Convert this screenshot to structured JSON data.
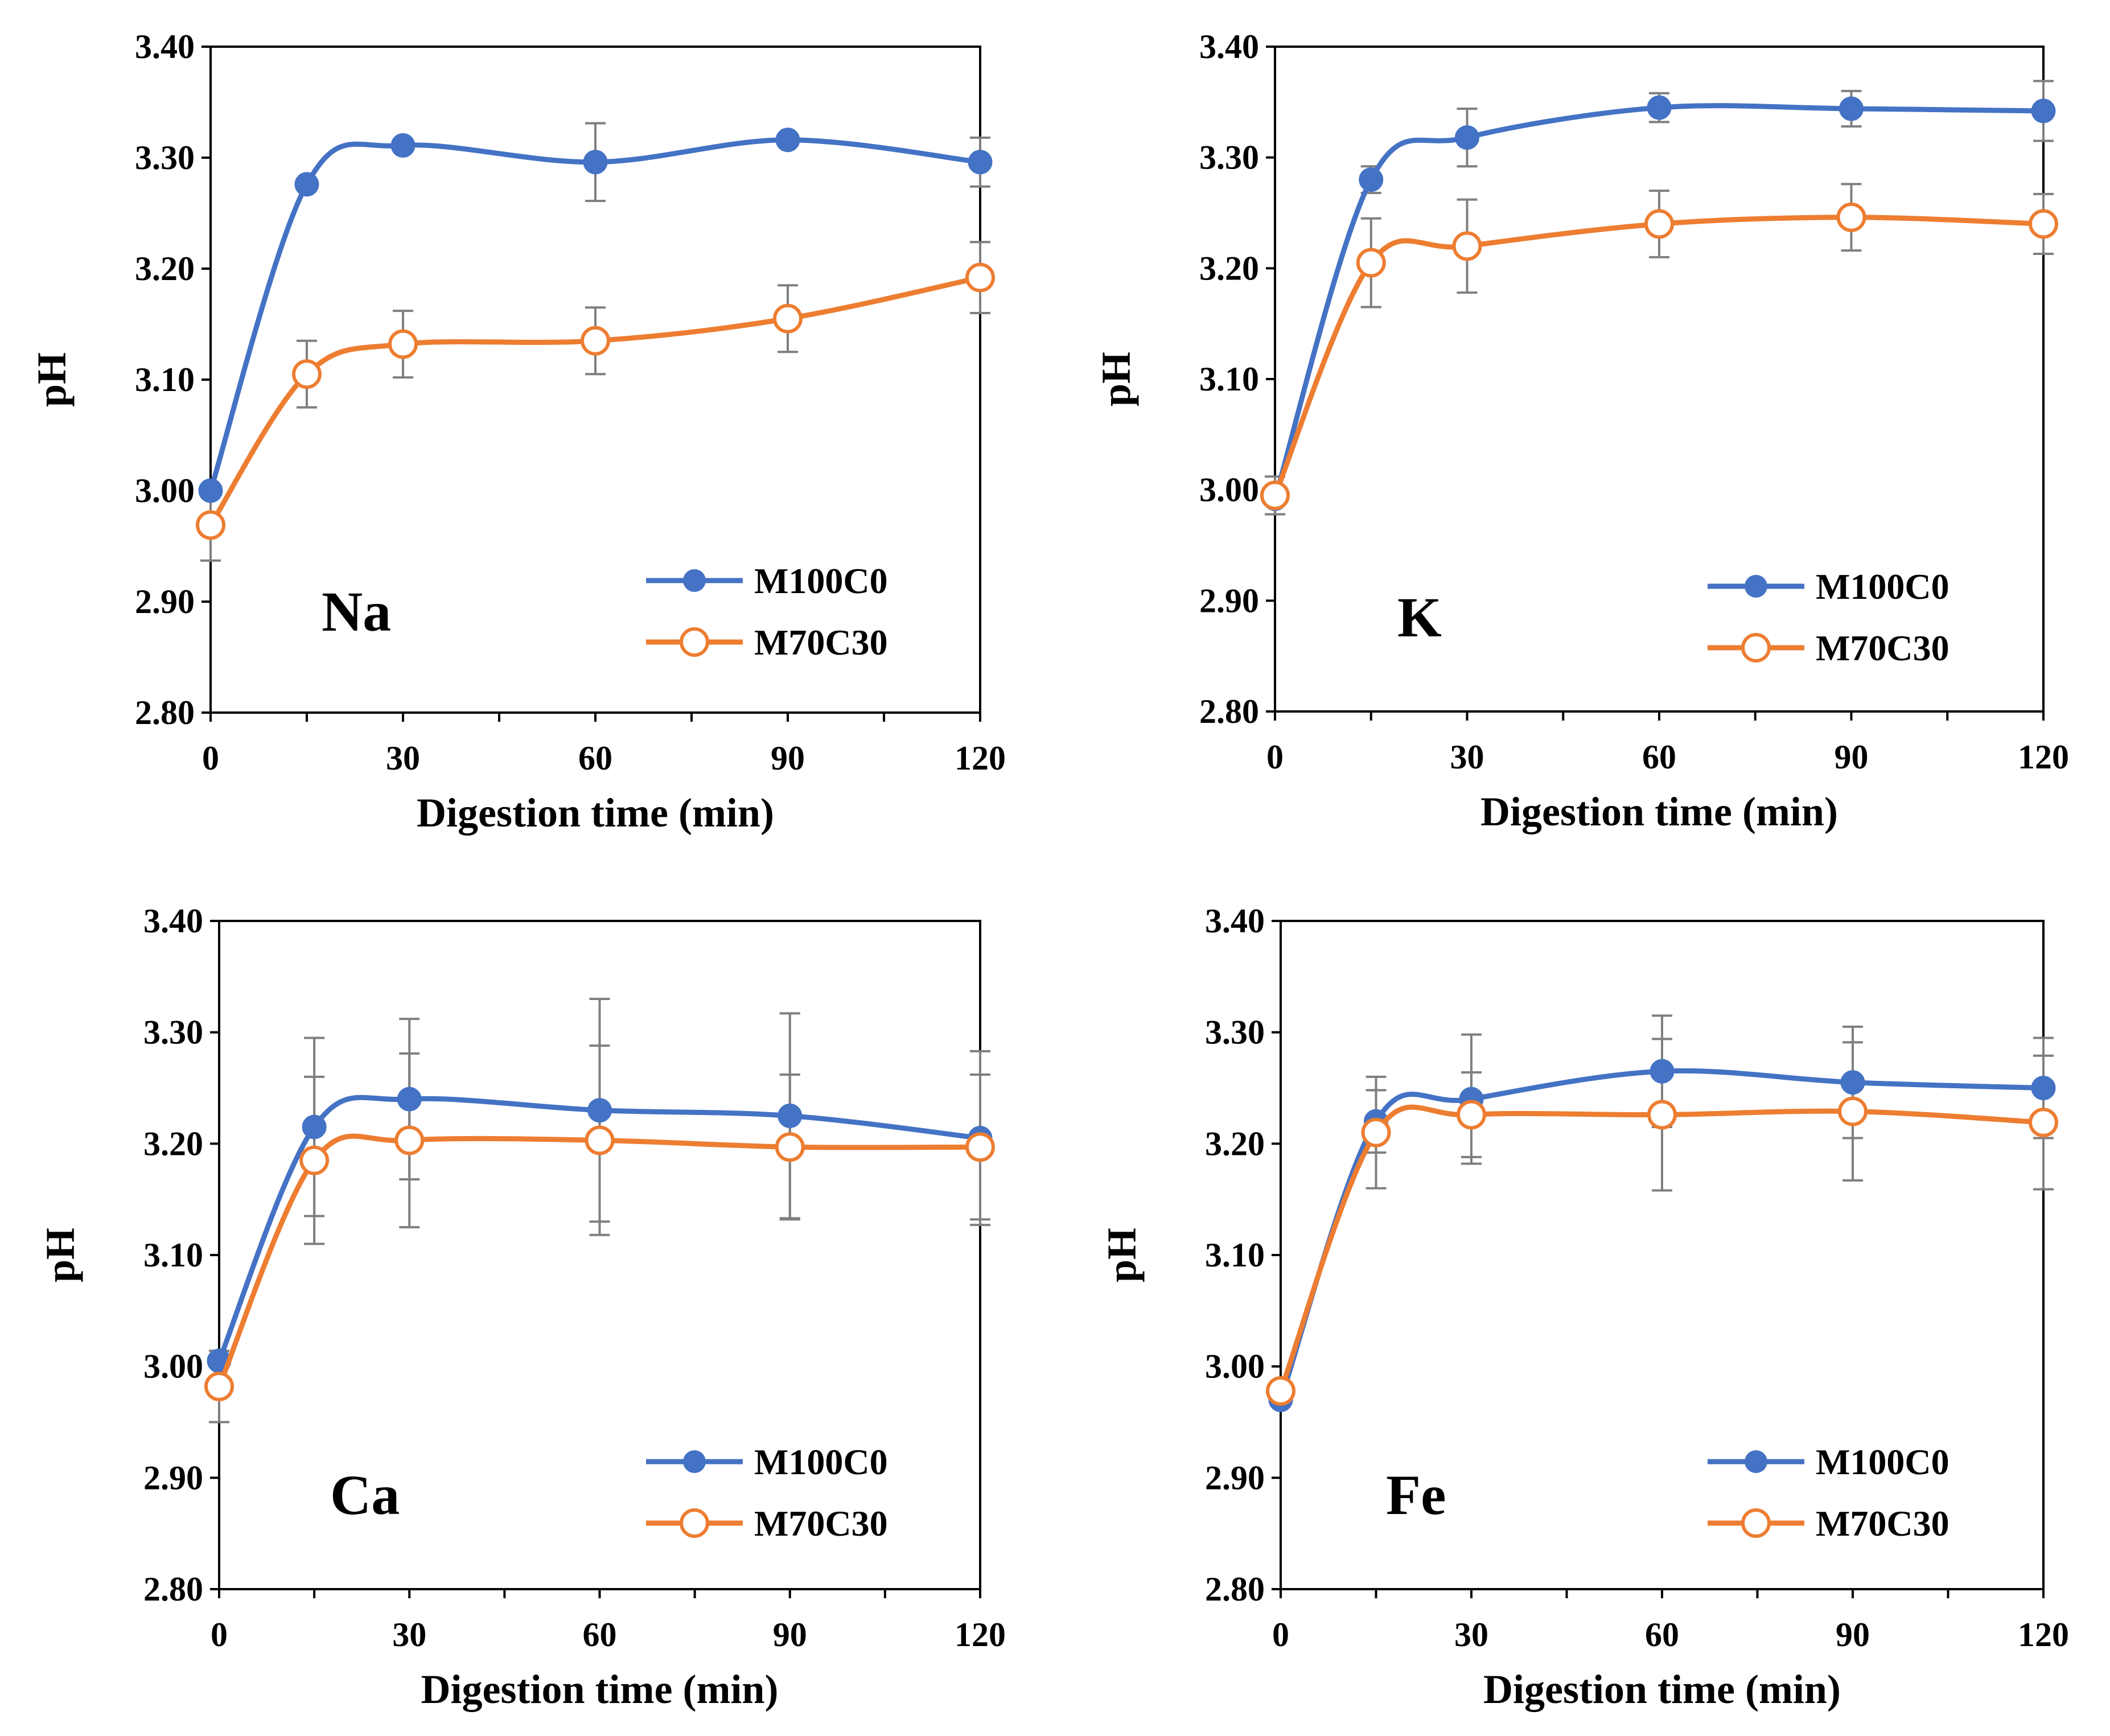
{
  "chart_data": [
    {
      "type": "line",
      "panel_label": "Na",
      "xlabel": "Digestion time (min)",
      "ylabel": "pH",
      "ylim": [
        2.8,
        3.4
      ],
      "yticks": [
        "2.80",
        "2.90",
        "3.00",
        "3.10",
        "3.20",
        "3.30",
        "3.40"
      ],
      "xticks": [
        "0",
        "30",
        "60",
        "90",
        "120"
      ],
      "x": [
        0,
        15,
        30,
        60,
        90,
        120
      ],
      "legend_position": "lower-right",
      "series": [
        {
          "name": "M100C0",
          "color": "#4472C4",
          "marker": "filled-circle",
          "values": [
            3.0,
            3.276,
            3.311,
            3.296,
            3.316,
            3.296
          ],
          "errors": [
            0,
            0,
            0,
            0.035,
            0,
            0.022
          ]
        },
        {
          "name": "M70C30",
          "color": "#ED7D31",
          "marker": "open-circle",
          "values": [
            2.969,
            3.105,
            3.132,
            3.135,
            3.155,
            3.192
          ],
          "errors": [
            0.032,
            0.03,
            0.03,
            0.03,
            0.03,
            0.032
          ]
        }
      ]
    },
    {
      "type": "line",
      "panel_label": "K",
      "xlabel": "Digestion time (min)",
      "ylabel": "pH",
      "ylim": [
        2.8,
        3.4
      ],
      "yticks": [
        "2.80",
        "2.90",
        "3.00",
        "3.10",
        "3.20",
        "3.30",
        "3.40"
      ],
      "xticks": [
        "0",
        "30",
        "60",
        "90",
        "120"
      ],
      "x": [
        0,
        15,
        30,
        60,
        90,
        120
      ],
      "legend_position": "lower-right",
      "series": [
        {
          "name": "M100C0",
          "color": "#4472C4",
          "marker": "filled-circle",
          "values": [
            2.992,
            3.28,
            3.318,
            3.345,
            3.344,
            3.342
          ],
          "errors": [
            0,
            0.012,
            0.026,
            0.013,
            0.016,
            0.027
          ]
        },
        {
          "name": "M70C30",
          "color": "#ED7D31",
          "marker": "open-circle",
          "values": [
            2.995,
            3.205,
            3.22,
            3.24,
            3.246,
            3.24
          ],
          "errors": [
            0.017,
            0.04,
            0.042,
            0.03,
            0.03,
            0.027
          ]
        }
      ]
    },
    {
      "type": "line",
      "panel_label": "Ca",
      "xlabel": "Digestion time (min)",
      "ylabel": "pH",
      "ylim": [
        2.8,
        3.4
      ],
      "yticks": [
        "2.80",
        "2.90",
        "3.00",
        "3.10",
        "3.20",
        "3.30",
        "3.40"
      ],
      "xticks": [
        "0",
        "30",
        "60",
        "90",
        "120"
      ],
      "x": [
        0,
        15,
        30,
        60,
        90,
        120
      ],
      "legend_position": "lower-right",
      "series": [
        {
          "name": "M100C0",
          "color": "#4472C4",
          "marker": "filled-circle",
          "values": [
            3.005,
            3.215,
            3.24,
            3.23,
            3.225,
            3.205
          ],
          "errors": [
            0,
            0.08,
            0.072,
            0.1,
            0.092,
            0.078
          ]
        },
        {
          "name": "M70C30",
          "color": "#ED7D31",
          "marker": "open-circle",
          "values": [
            2.982,
            3.185,
            3.203,
            3.203,
            3.197,
            3.197
          ],
          "errors": [
            0.032,
            0.075,
            0.078,
            0.085,
            0.065,
            0.065
          ]
        }
      ]
    },
    {
      "type": "line",
      "panel_label": "Fe",
      "xlabel": "Digestion time (min)",
      "ylabel": "pH",
      "ylim": [
        2.8,
        3.4
      ],
      "yticks": [
        "2.80",
        "2.90",
        "3.00",
        "3.10",
        "3.20",
        "3.30",
        "3.40"
      ],
      "xticks": [
        "0",
        "30",
        "60",
        "90",
        "120"
      ],
      "x": [
        0,
        15,
        30,
        60,
        90,
        120
      ],
      "legend_position": "lower-right",
      "series": [
        {
          "name": "M100C0",
          "color": "#4472C4",
          "marker": "filled-circle",
          "values": [
            2.97,
            3.22,
            3.24,
            3.265,
            3.255,
            3.25
          ],
          "errors": [
            0,
            0.028,
            0.058,
            0.05,
            0.05,
            0.045
          ]
        },
        {
          "name": "M70C30",
          "color": "#ED7D31",
          "marker": "open-circle",
          "values": [
            2.978,
            3.21,
            3.226,
            3.226,
            3.229,
            3.219
          ],
          "errors": [
            0,
            0.05,
            0.038,
            0.068,
            0.062,
            0.06
          ]
        }
      ]
    }
  ]
}
